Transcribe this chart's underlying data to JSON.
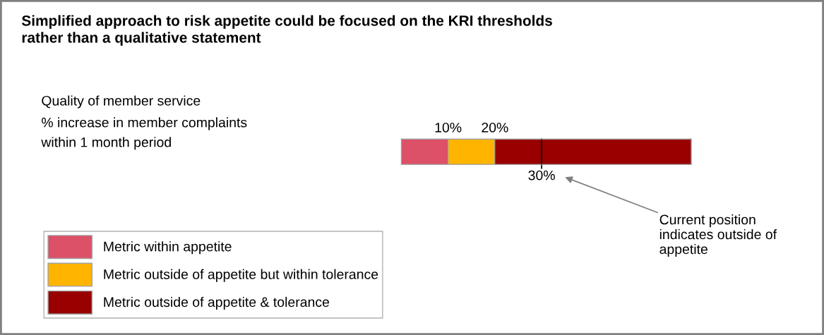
{
  "chart_data": {
    "type": "bar",
    "orientation": "horizontal",
    "stacked": true,
    "title": "Simplified approach to risk appetite could be focused on the KRI thresholds\nrather than a qualitative statement",
    "subtitle": "Quality of member service",
    "annotations": [
      "% increase in member complaints\nwithin 1 month period",
      "Current position\nindicates outside of\nappetite"
    ],
    "categories": [
      null
    ],
    "series": [
      {
        "name": "Metric within appetite",
        "color": "#dc5068",
        "values": [
          10
        ]
      },
      {
        "name": "Metric outside of appetite but within tolerance",
        "color": "#ffb400",
        "values": [
          10
        ]
      },
      {
        "name": "Metric outside of appetite & tolerance",
        "color": "#990000",
        "values": [
          42
        ]
      }
    ],
    "xlim": [
      0,
      62
    ],
    "xticks": [
      {
        "value": 10,
        "label": "10%"
      },
      {
        "value": 20,
        "label": "20%"
      }
    ],
    "ref_lines": [
      {
        "axis": "x",
        "value": 30,
        "label": "30%",
        "color": "#000000"
      }
    ],
    "legend": "bottom left",
    "grid": false
  }
}
